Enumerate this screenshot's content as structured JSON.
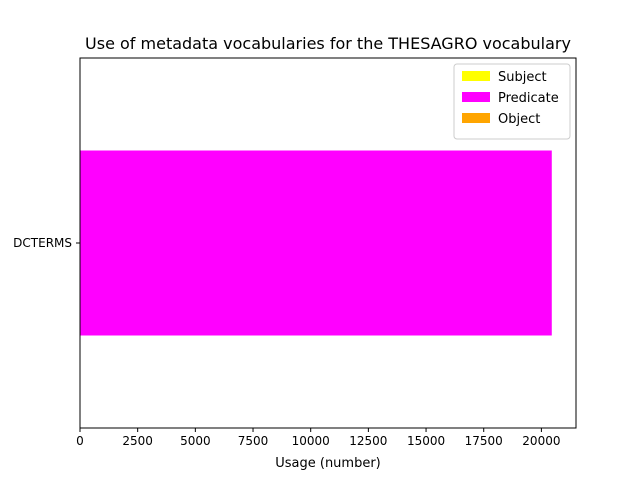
{
  "chart_data": {
    "type": "bar",
    "orientation": "horizontal",
    "stacked": true,
    "title": "Use of metadata vocabularies for the THESAGRO vocabulary",
    "xlabel": "Usage (number)",
    "ylabel": "",
    "categories": [
      "DCTERMS"
    ],
    "series": [
      {
        "name": "Subject",
        "color": "#ffff00",
        "values": [
          0
        ]
      },
      {
        "name": "Predicate",
        "color": "#ff00ff",
        "values": [
          20450
        ]
      },
      {
        "name": "Object",
        "color": "#ffa500",
        "values": [
          0
        ]
      }
    ],
    "xlim": [
      0,
      21500
    ],
    "xticks": [
      0,
      2500,
      5000,
      7500,
      10000,
      12500,
      15000,
      17500,
      20000
    ],
    "grid": false,
    "legend_position": "top-right"
  }
}
